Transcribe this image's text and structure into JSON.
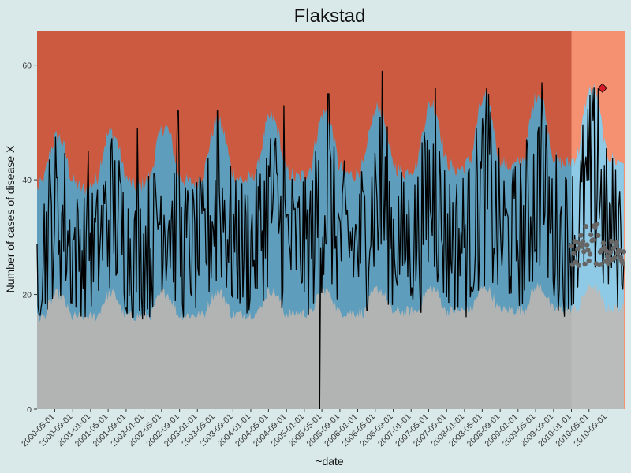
{
  "chart_data": {
    "type": "area",
    "title": "Flakstad",
    "xlabel": "~date",
    "ylabel": "Number of cases of disease X",
    "x_range": [
      "2000-01-01",
      "2010-12-31"
    ],
    "ylim": [
      0,
      66
    ],
    "y_ticks": [
      0,
      20,
      40,
      60
    ],
    "x_tick_labels": [
      "2000-05-01",
      "2000-09-01",
      "2001-01-01",
      "2001-05-01",
      "2001-09-01",
      "2002-01-01",
      "2002-05-01",
      "2002-09-01",
      "2003-01-01",
      "2003-05-01",
      "2003-09-01",
      "2004-01-01",
      "2004-05-01",
      "2004-09-01",
      "2005-01-01",
      "2005-05-01",
      "2005-09-01",
      "2006-01-01",
      "2006-05-01",
      "2006-09-01",
      "2007-01-01",
      "2007-05-01",
      "2007-09-01",
      "2008-01-01",
      "2008-05-01",
      "2008-09-01",
      "2009-01-01",
      "2009-05-01",
      "2009-09-01",
      "2010-01-01",
      "2010-05-01",
      "2010-09-01"
    ],
    "grid": false,
    "legend": "none",
    "regions": {
      "baseline_end": "2010-01-01",
      "zones": [
        "lower (gray)",
        "normal (blue)",
        "high (red)"
      ]
    },
    "cases_series": {
      "description_of_shape": "weekly counts, seasonal peaks each winter/spring, drop to 0 around 2005-04",
      "annual_peaks": [
        {
          "date": "2000-12-15",
          "value": 45
        },
        {
          "date": "2001-11-15",
          "value": 49
        },
        {
          "date": "2002-08-20",
          "value": 52
        },
        {
          "date": "2003-05-20",
          "value": 52
        },
        {
          "date": "2004-08-15",
          "value": 53
        },
        {
          "date": "2005-06-15",
          "value": 55
        },
        {
          "date": "2006-06-15",
          "value": 59
        },
        {
          "date": "2007-06-15",
          "value": 56
        },
        {
          "date": "2008-06-15",
          "value": 55
        },
        {
          "date": "2009-06-15",
          "value": 57
        },
        {
          "date": "2010-07-01",
          "value": 56
        }
      ],
      "zero_dip": {
        "date": "2005-04-15",
        "value": 0
      }
    },
    "alarm_points": [
      {
        "date": "2010-08-01",
        "value": 56
      }
    ],
    "forecast_points_range": [
      25,
      33
    ],
    "colors": {
      "background": "#d9e8e8",
      "gray_zone": "#b1b4b3",
      "blue_zone": "#5e9dbb",
      "red_zone": "#cc5a40",
      "gray_zone_future": "#b9bcbb",
      "blue_zone_future": "#8ecae6",
      "red_zone_future": "#f59070",
      "line": "#000000",
      "forecast_points": "#666666",
      "alarm": "#d81b26"
    }
  }
}
